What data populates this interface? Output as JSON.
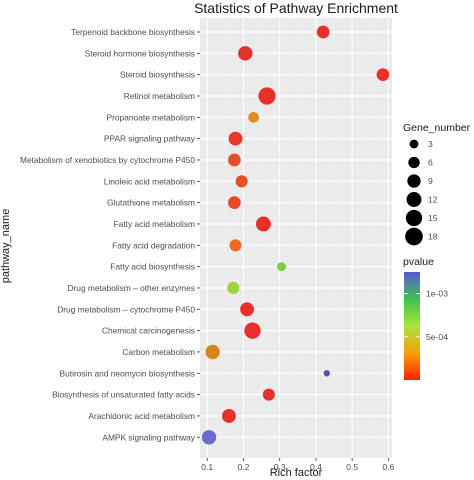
{
  "chart_data": {
    "type": "scatter",
    "title": "Statistics of Pathway Enrichment",
    "xlabel": "Rich factor",
    "ylabel": "pathway_name",
    "xlim": [
      0.08,
      0.61
    ],
    "xticks": [
      "0.1",
      "0.2",
      "0.3",
      "0.4",
      "0.5",
      "0.6"
    ],
    "xtick_values": [
      0.1,
      0.2,
      0.3,
      0.4,
      0.5,
      0.6
    ],
    "grid": true,
    "legend_position": "right",
    "size_legend": {
      "title": "Gene_number",
      "values": [
        3,
        6,
        9,
        12,
        15,
        18
      ],
      "labels": [
        "3",
        "6",
        "9",
        "12",
        "15",
        "18"
      ]
    },
    "color_legend": {
      "title": "pvalue",
      "min": 0,
      "max": 0.00125,
      "tick_values": [
        0.0005,
        0.001
      ],
      "tick_labels": [
        "5e-04",
        "1e-03"
      ],
      "colors_low_to_high": [
        "#ff2200",
        "#f6a20a",
        "#a8e83a",
        "#37c64b",
        "#5a5cd8"
      ]
    },
    "points": [
      {
        "pathway": "Terpenoid backbone biosynthesis",
        "rich_factor": 0.42,
        "gene_number": 8,
        "pvalue": 1e-05,
        "color": "#e8302a"
      },
      {
        "pathway": "Steroid hormone biosynthesis",
        "rich_factor": 0.205,
        "gene_number": 11,
        "pvalue": 1e-05,
        "color": "#e8302a"
      },
      {
        "pathway": "Steroid biosynthesis",
        "rich_factor": 0.585,
        "gene_number": 8,
        "pvalue": 1e-05,
        "color": "#e8302a"
      },
      {
        "pathway": "Retinol metabolism",
        "rich_factor": 0.265,
        "gene_number": 17,
        "pvalue": 2e-05,
        "color": "#e8302a"
      },
      {
        "pathway": "Propanoate metabolism",
        "rich_factor": 0.228,
        "gene_number": 5,
        "pvalue": 0.00022,
        "color": "#e58a1c"
      },
      {
        "pathway": "PPAR signaling pathway",
        "rich_factor": 0.178,
        "gene_number": 10,
        "pvalue": 4e-05,
        "color": "#e8382a"
      },
      {
        "pathway": "Metabolism of xenobiotics by cytochrome P450",
        "rich_factor": 0.175,
        "gene_number": 8,
        "pvalue": 7e-05,
        "color": "#e84f28"
      },
      {
        "pathway": "Linoleic acid metabolism",
        "rich_factor": 0.195,
        "gene_number": 7,
        "pvalue": 7e-05,
        "color": "#e84f28"
      },
      {
        "pathway": "Glutathione metabolism",
        "rich_factor": 0.175,
        "gene_number": 8,
        "pvalue": 6e-05,
        "color": "#e84a28"
      },
      {
        "pathway": "Fatty acid metabolism",
        "rich_factor": 0.255,
        "gene_number": 12,
        "pvalue": 2e-05,
        "color": "#e8302a"
      },
      {
        "pathway": "Fatty acid degradation",
        "rich_factor": 0.178,
        "gene_number": 7,
        "pvalue": 0.0001,
        "color": "#ec6a22"
      },
      {
        "pathway": "Fatty acid biosynthesis",
        "rich_factor": 0.305,
        "gene_number": 3,
        "pvalue": 0.00065,
        "color": "#7ccd3a"
      },
      {
        "pathway": "Drug metabolism – other enzymes",
        "rich_factor": 0.172,
        "gene_number": 7,
        "pvalue": 0.0006,
        "color": "#9bd33a"
      },
      {
        "pathway": "Drug metabolism – cytochrome P450",
        "rich_factor": 0.21,
        "gene_number": 10,
        "pvalue": 2e-05,
        "color": "#e8302a"
      },
      {
        "pathway": "Chemical carcinogenesis",
        "rich_factor": 0.225,
        "gene_number": 15,
        "pvalue": 1e-05,
        "color": "#e8302a"
      },
      {
        "pathway": "Carbon metabolism",
        "rich_factor": 0.115,
        "gene_number": 11,
        "pvalue": 0.0003,
        "color": "#d2861c"
      },
      {
        "pathway": "Butirosin and neomycin biosynthesis",
        "rich_factor": 0.43,
        "gene_number": 1,
        "pvalue": 0.00115,
        "color": "#5050c0"
      },
      {
        "pathway": "Biosynthesis of unsaturated fatty acids",
        "rich_factor": 0.27,
        "gene_number": 7,
        "pvalue": 2e-05,
        "color": "#e8302a"
      },
      {
        "pathway": "Arachidonic acid metabolism",
        "rich_factor": 0.16,
        "gene_number": 10,
        "pvalue": 3e-05,
        "color": "#e8302a"
      },
      {
        "pathway": "AMPK signaling pathway",
        "rich_factor": 0.105,
        "gene_number": 11,
        "pvalue": 0.00118,
        "color": "#6a6ad0"
      }
    ]
  }
}
